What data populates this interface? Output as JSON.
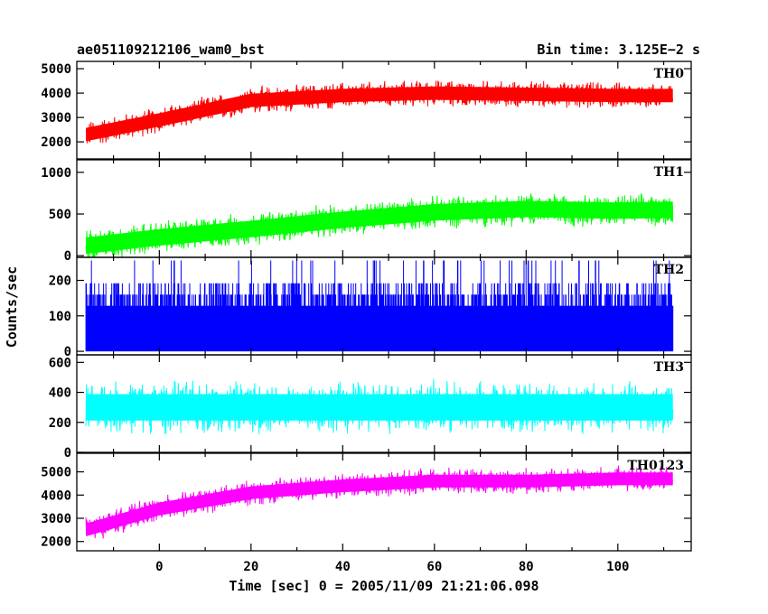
{
  "header": {
    "title": "ae051109212106_wam0_bst",
    "bin_time": "Bin time: 3.125E−2 s"
  },
  "chart_data": {
    "type": "line",
    "title": "ae051109212106_wam0_bst",
    "subtitle": "Bin time: 3.125E−2 s",
    "xlabel": "Time [sec] 0 = 2005/11/09 21:21:06.098",
    "ylabel": "Counts/sec",
    "xlim": [
      -18,
      116
    ],
    "x_ticks": [
      0,
      20,
      40,
      60,
      80,
      100
    ],
    "grid": false,
    "panels": [
      {
        "name": "TH0",
        "color": "#ff0000",
        "ylim": [
          1300,
          5300
        ],
        "y_ticks": [
          2000,
          3000,
          4000,
          5000
        ],
        "x_range": [
          -16,
          112
        ],
        "trend": [
          [
            -16,
            2300
          ],
          [
            0,
            2900
          ],
          [
            20,
            3700
          ],
          [
            40,
            3900
          ],
          [
            60,
            4000
          ],
          [
            80,
            3950
          ],
          [
            100,
            3900
          ],
          [
            112,
            3900
          ]
        ],
        "noise_amplitude": 500
      },
      {
        "name": "TH1",
        "color": "#00ff00",
        "ylim": [
          -20,
          1150
        ],
        "y_ticks": [
          0,
          500,
          1000
        ],
        "x_range": [
          -16,
          112
        ],
        "trend": [
          [
            -16,
            120
          ],
          [
            0,
            220
          ],
          [
            20,
            320
          ],
          [
            40,
            430
          ],
          [
            60,
            520
          ],
          [
            80,
            560
          ],
          [
            100,
            540
          ],
          [
            112,
            550
          ]
        ],
        "noise_amplitude": 180
      },
      {
        "name": "TH2",
        "color": "#0000ff",
        "ylim": [
          -10,
          265
        ],
        "y_ticks": [
          0,
          100,
          200
        ],
        "x_range": [
          -16,
          112
        ],
        "discrete_levels": [
          128,
          160,
          192,
          224,
          256
        ],
        "baseline": 128
      },
      {
        "name": "TH3",
        "color": "#00ffff",
        "ylim": [
          0,
          650
        ],
        "y_ticks": [
          0,
          200,
          400,
          600
        ],
        "x_range": [
          -16,
          112
        ],
        "trend": [
          [
            -16,
            300
          ],
          [
            112,
            300
          ]
        ],
        "noise_amplitude": 160
      },
      {
        "name": "TH0123",
        "color": "#ff00ff",
        "ylim": [
          1600,
          5800
        ],
        "y_ticks": [
          2000,
          3000,
          4000,
          5000
        ],
        "x_range": [
          -16,
          112
        ],
        "trend": [
          [
            -16,
            2500
          ],
          [
            0,
            3400
          ],
          [
            20,
            4100
          ],
          [
            40,
            4400
          ],
          [
            60,
            4600
          ],
          [
            80,
            4600
          ],
          [
            100,
            4700
          ],
          [
            112,
            4700
          ]
        ],
        "noise_amplitude": 500
      }
    ]
  }
}
